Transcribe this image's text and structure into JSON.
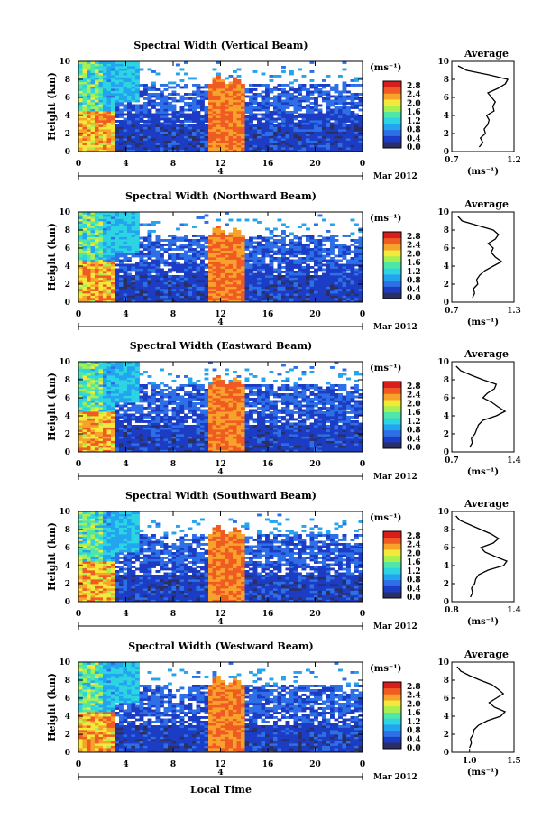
{
  "figure": {
    "x_label": "Local Time",
    "date_label": "Mar 2012",
    "date_day": "4",
    "y_label": "Height (km)",
    "unit_label": "(ms⁻¹)",
    "avg_title": "Average",
    "avg_unit": "(ms⁻¹)"
  },
  "colors": {
    "scale": [
      "#2b2f63",
      "#1c3cc4",
      "#2d6fe6",
      "#22a4ee",
      "#2dd4e2",
      "#50e6a8",
      "#a9ef52",
      "#f3e93a",
      "#f7a22b",
      "#f05a23",
      "#d91d1d"
    ],
    "below_min": "#2b2f63"
  },
  "chart_data": [
    {
      "type": "heatmap",
      "title": "Spectral Width (Vertical Beam)",
      "xlabel": "Local Time",
      "ylabel": "Height (km)",
      "x_ticks": [
        "0",
        "4",
        "8",
        "12",
        "16",
        "20",
        "0"
      ],
      "y_ticks": [
        "0",
        "2",
        "4",
        "6",
        "8",
        "10"
      ],
      "xlim": [
        0,
        24
      ],
      "ylim": [
        0,
        10
      ],
      "colorbar": {
        "label": "(ms⁻¹)",
        "ticks": [
          "0.0",
          "0.4",
          "0.8",
          "1.2",
          "1.6",
          "2.0",
          "2.4",
          "2.8"
        ],
        "range": [
          0,
          2.8
        ]
      },
      "date": "Mar 2012",
      "profile": {
        "title": "Average",
        "xlabel": "(ms⁻¹)",
        "x_ticks": [
          "0.7",
          "1.2"
        ],
        "xlim": [
          0.7,
          1.2
        ],
        "y_ticks": [
          "0",
          "2",
          "4",
          "6",
          "8",
          "10"
        ],
        "heights": [
          0.5,
          1.0,
          1.5,
          2.0,
          2.5,
          3.0,
          3.5,
          4.0,
          4.5,
          5.0,
          5.5,
          6.0,
          6.5,
          7.0,
          7.5,
          8.0,
          8.5,
          9.0,
          9.5
        ],
        "values": [
          0.92,
          0.95,
          0.93,
          0.97,
          0.96,
          0.99,
          1.0,
          0.98,
          1.04,
          1.03,
          1.05,
          1.02,
          0.99,
          1.07,
          1.13,
          1.15,
          1.0,
          0.82,
          0.75
        ]
      }
    },
    {
      "type": "heatmap",
      "title": "Spectral Width (Northward Beam)",
      "xlabel": "Local Time",
      "ylabel": "Height (km)",
      "x_ticks": [
        "0",
        "4",
        "8",
        "12",
        "16",
        "20",
        "0"
      ],
      "y_ticks": [
        "0",
        "2",
        "4",
        "6",
        "8",
        "10"
      ],
      "xlim": [
        0,
        24
      ],
      "ylim": [
        0,
        10
      ],
      "colorbar": {
        "label": "(ms⁻¹)",
        "ticks": [
          "0.0",
          "0.4",
          "0.8",
          "1.2",
          "1.6",
          "2.0",
          "2.4",
          "2.8"
        ],
        "range": [
          0,
          2.8
        ]
      },
      "date": "Mar 2012",
      "profile": {
        "title": "Average",
        "xlabel": "(ms⁻¹)",
        "x_ticks": [
          "0.7",
          "1.3"
        ],
        "xlim": [
          0.7,
          1.3
        ],
        "y_ticks": [
          "0",
          "2",
          "4",
          "6",
          "8",
          "10"
        ],
        "heights": [
          0.5,
          1.0,
          1.5,
          2.0,
          2.5,
          3.0,
          3.5,
          4.0,
          4.5,
          5.0,
          5.5,
          6.0,
          6.5,
          7.0,
          7.5,
          8.0,
          8.5,
          9.0,
          9.5
        ],
        "values": [
          0.9,
          0.92,
          0.91,
          0.95,
          0.94,
          0.97,
          1.02,
          1.1,
          1.18,
          1.12,
          1.08,
          1.1,
          1.05,
          1.12,
          1.15,
          1.1,
          0.95,
          0.8,
          0.76
        ]
      }
    },
    {
      "type": "heatmap",
      "title": "Spectral Width (Eastward Beam)",
      "xlabel": "Local Time",
      "ylabel": "Height (km)",
      "x_ticks": [
        "0",
        "4",
        "8",
        "12",
        "16",
        "20",
        "0"
      ],
      "y_ticks": [
        "0",
        "2",
        "4",
        "6",
        "8",
        "10"
      ],
      "xlim": [
        0,
        24
      ],
      "ylim": [
        0,
        10
      ],
      "colorbar": {
        "label": "(ms⁻¹)",
        "ticks": [
          "0.0",
          "0.4",
          "0.8",
          "1.2",
          "1.6",
          "2.0",
          "2.4",
          "2.8"
        ],
        "range": [
          0,
          2.8
        ]
      },
      "date": "Mar 2012",
      "profile": {
        "title": "Average",
        "xlabel": "(ms⁻¹)",
        "x_ticks": [
          "0.7",
          "1.4"
        ],
        "xlim": [
          0.7,
          1.4
        ],
        "y_ticks": [
          "0",
          "2",
          "4",
          "6",
          "8",
          "10"
        ],
        "heights": [
          0.5,
          1.0,
          1.5,
          2.0,
          2.5,
          3.0,
          3.5,
          4.0,
          4.5,
          5.0,
          5.5,
          6.0,
          6.5,
          7.0,
          7.5,
          8.0,
          8.5,
          9.0,
          9.5
        ],
        "values": [
          0.9,
          0.93,
          0.92,
          0.96,
          0.98,
          1.0,
          1.05,
          1.2,
          1.3,
          1.22,
          1.15,
          1.05,
          1.1,
          1.18,
          1.2,
          1.05,
          0.92,
          0.8,
          0.75
        ]
      }
    },
    {
      "type": "heatmap",
      "title": "Spectral Width (Southward Beam)",
      "xlabel": "Local Time",
      "ylabel": "Height (km)",
      "x_ticks": [
        "0",
        "4",
        "8",
        "12",
        "16",
        "20",
        "0"
      ],
      "y_ticks": [
        "0",
        "2",
        "4",
        "6",
        "8",
        "10"
      ],
      "xlim": [
        0,
        24
      ],
      "ylim": [
        0,
        10
      ],
      "colorbar": {
        "label": "(ms⁻¹)",
        "ticks": [
          "0.0",
          "0.4",
          "0.8",
          "1.2",
          "1.6",
          "2.0",
          "2.4",
          "2.8"
        ],
        "range": [
          0,
          2.8
        ]
      },
      "date": "Mar 2012",
      "profile": {
        "title": "Average",
        "xlabel": "(ms⁻¹)",
        "x_ticks": [
          "0.8",
          "1.4"
        ],
        "xlim": [
          0.8,
          1.4
        ],
        "y_ticks": [
          "0",
          "2",
          "4",
          "6",
          "8",
          "10"
        ],
        "heights": [
          0.5,
          1.0,
          1.5,
          2.0,
          2.5,
          3.0,
          3.5,
          4.0,
          4.5,
          5.0,
          5.5,
          6.0,
          6.5,
          7.0,
          7.5,
          8.0,
          8.5,
          9.0,
          9.5
        ],
        "values": [
          0.98,
          1.0,
          0.99,
          1.02,
          1.03,
          1.06,
          1.15,
          1.3,
          1.33,
          1.22,
          1.12,
          1.08,
          1.2,
          1.25,
          1.18,
          1.08,
          0.98,
          0.88,
          0.84
        ]
      }
    },
    {
      "type": "heatmap",
      "title": "Spectral Width (Westward Beam)",
      "xlabel": "Local Time",
      "ylabel": "Height (km)",
      "x_ticks": [
        "0",
        "4",
        "8",
        "12",
        "16",
        "20",
        "0"
      ],
      "y_ticks": [
        "0",
        "2",
        "4",
        "6",
        "8",
        "10"
      ],
      "xlim": [
        0,
        24
      ],
      "ylim": [
        0,
        10
      ],
      "colorbar": {
        "label": "(ms⁻¹)",
        "ticks": [
          "0.0",
          "0.4",
          "0.8",
          "1.2",
          "1.6",
          "2.0",
          "2.4",
          "2.8"
        ],
        "range": [
          0,
          2.8
        ]
      },
      "date": "Mar 2012",
      "profile": {
        "title": "Average",
        "xlabel": "(ms⁻¹)",
        "x_ticks": [
          "1.0",
          "1.5"
        ],
        "xlim": [
          0.8,
          1.5
        ],
        "y_ticks": [
          "0",
          "2",
          "4",
          "6",
          "8",
          "10"
        ],
        "heights": [
          0.5,
          1.0,
          1.5,
          2.0,
          2.5,
          3.0,
          3.5,
          4.0,
          4.5,
          5.0,
          5.5,
          6.0,
          6.5,
          7.0,
          7.5,
          8.0,
          8.5,
          9.0,
          9.5
        ],
        "values": [
          1.0,
          1.02,
          1.01,
          1.04,
          1.05,
          1.1,
          1.2,
          1.35,
          1.4,
          1.28,
          1.22,
          1.3,
          1.38,
          1.32,
          1.25,
          1.12,
          1.0,
          0.9,
          0.86
        ]
      }
    }
  ]
}
